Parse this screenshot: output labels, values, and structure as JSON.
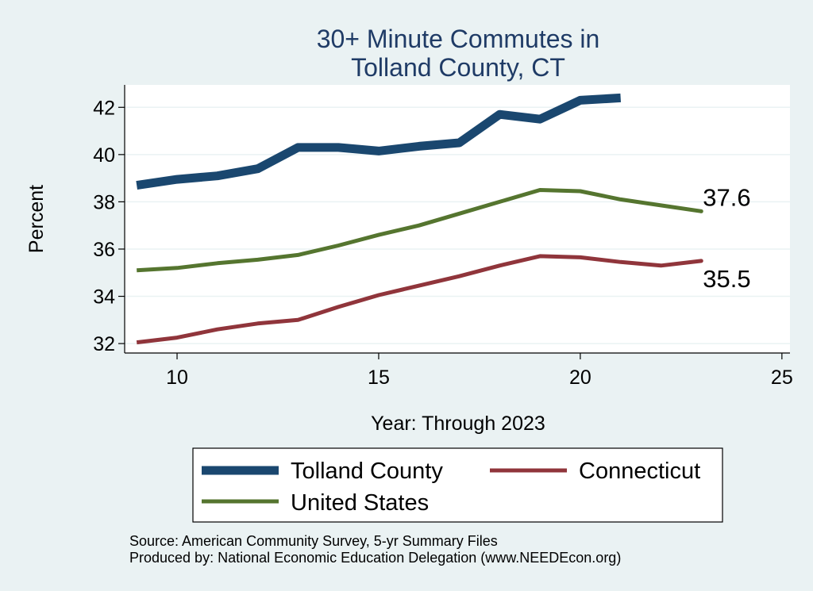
{
  "chart_data": {
    "type": "line",
    "title": [
      "30+ Minute Commutes in",
      "Tolland County, CT"
    ],
    "xlabel": "Year: Through 2023",
    "ylabel": "Percent",
    "xlim": [
      8.7,
      25.2
    ],
    "ylim": [
      31.6,
      42.95
    ],
    "xticks": [
      10,
      15,
      20,
      25
    ],
    "yticks": [
      32,
      34,
      36,
      38,
      40,
      42
    ],
    "grid": true,
    "legend_position": "bottom",
    "series": [
      {
        "name": "Tolland County",
        "color": "#1a476f",
        "x": [
          9,
          10,
          11,
          12,
          13,
          14,
          15,
          16,
          17,
          18,
          19,
          20,
          21
        ],
        "y": [
          38.7,
          38.95,
          39.1,
          39.4,
          40.3,
          40.3,
          40.15,
          40.35,
          40.5,
          41.7,
          41.5,
          42.3,
          42.4
        ]
      },
      {
        "name": "Connecticut",
        "color": "#90353b",
        "x": [
          9,
          10,
          11,
          12,
          13,
          14,
          15,
          16,
          17,
          18,
          19,
          20,
          21,
          22,
          23
        ],
        "y": [
          32.05,
          32.25,
          32.6,
          32.85,
          33.0,
          33.55,
          34.05,
          34.45,
          34.85,
          35.3,
          35.7,
          35.65,
          35.45,
          35.3,
          35.5
        ],
        "end_label": "35.5"
      },
      {
        "name": "United States",
        "color": "#55752f",
        "x": [
          9,
          10,
          11,
          12,
          13,
          14,
          15,
          16,
          17,
          18,
          19,
          20,
          21,
          22,
          23
        ],
        "y": [
          35.1,
          35.2,
          35.4,
          35.55,
          35.75,
          36.15,
          36.6,
          37.0,
          37.5,
          38.0,
          38.5,
          38.45,
          38.1,
          37.85,
          37.6
        ],
        "end_label": "37.6"
      }
    ],
    "notes": [
      "Source: American Community Survey, 5-yr Summary Files",
      "Produced by: National Economic Education Delegation (www.NEEDEcon.org)"
    ]
  }
}
